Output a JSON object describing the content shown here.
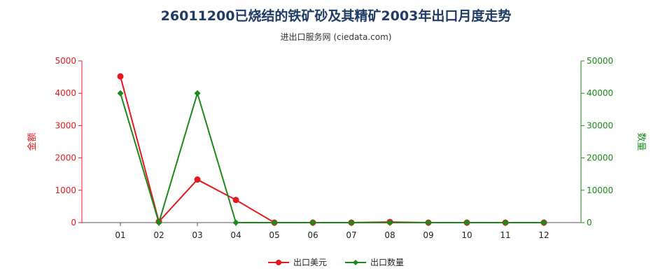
{
  "title": "26011200已烧结的铁矿砂及其精矿2003年出口月度走势",
  "subtitle": "进出口服务网 (ciedata.com)",
  "chart_data": {
    "type": "line",
    "title": "26011200已烧结的铁矿砂及其精矿2003年出口月度走势",
    "subtitle": "进出口服务网 (ciedata.com)",
    "categories": [
      "01",
      "02",
      "03",
      "04",
      "05",
      "06",
      "07",
      "08",
      "09",
      "10",
      "11",
      "12"
    ],
    "left_axis": {
      "label": "金额",
      "ticks": [
        0,
        1000,
        2000,
        3000,
        4000,
        5000
      ],
      "ylim": [
        0,
        5000
      ],
      "color": "#e8181e"
    },
    "right_axis": {
      "label": "数量",
      "ticks": [
        0,
        10000,
        20000,
        30000,
        40000,
        50000
      ],
      "ylim": [
        0,
        50000
      ],
      "color": "#1a8a1a"
    },
    "series": [
      {
        "name": "出口美元",
        "axis": "left",
        "color": "#e8181e",
        "marker": "circle",
        "values": [
          4520,
          30,
          1330,
          700,
          0,
          0,
          0,
          20,
          0,
          0,
          0,
          0
        ]
      },
      {
        "name": "出口数量",
        "axis": "right",
        "color": "#1a8a1a",
        "marker": "diamond",
        "values": [
          40000,
          0,
          40000,
          0,
          0,
          0,
          0,
          0,
          0,
          0,
          0,
          0
        ]
      }
    ],
    "grid": false,
    "legend_position": "bottom-center"
  }
}
